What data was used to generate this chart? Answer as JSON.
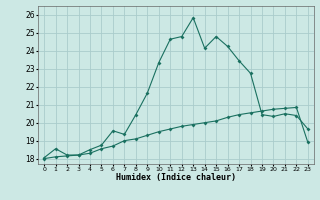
{
  "title": "",
  "xlabel": "Humidex (Indice chaleur)",
  "ylabel": "",
  "background_color": "#cce8e4",
  "grid_color": "#aacccc",
  "line_color": "#1a7060",
  "xlim": [
    -0.5,
    23.5
  ],
  "ylim": [
    17.7,
    26.5
  ],
  "yticks": [
    18,
    19,
    20,
    21,
    22,
    23,
    24,
    25,
    26
  ],
  "xticks": [
    0,
    1,
    2,
    3,
    4,
    5,
    6,
    7,
    8,
    9,
    10,
    11,
    12,
    13,
    14,
    15,
    16,
    17,
    18,
    19,
    20,
    21,
    22,
    23
  ],
  "line1_x": [
    0,
    1,
    2,
    3,
    4,
    5,
    6,
    7,
    8,
    9,
    10,
    11,
    12,
    13,
    14,
    15,
    16,
    17,
    18,
    19,
    20,
    21,
    22,
    23
  ],
  "line1_y": [
    18.0,
    18.1,
    18.15,
    18.2,
    18.3,
    18.55,
    18.7,
    19.0,
    19.1,
    19.3,
    19.5,
    19.65,
    19.8,
    19.9,
    20.0,
    20.1,
    20.3,
    20.45,
    20.55,
    20.65,
    20.75,
    20.8,
    20.85,
    18.9
  ],
  "line2_x": [
    0,
    1,
    2,
    3,
    4,
    5,
    6,
    7,
    8,
    9,
    10,
    11,
    12,
    13,
    14,
    15,
    16,
    17,
    18,
    19,
    20,
    21,
    22,
    23
  ],
  "line2_y": [
    18.05,
    18.55,
    18.2,
    18.2,
    18.5,
    18.75,
    19.55,
    19.35,
    20.45,
    21.65,
    23.35,
    24.65,
    24.8,
    25.85,
    24.15,
    24.8,
    24.25,
    23.45,
    22.75,
    20.45,
    20.35,
    20.5,
    20.4,
    19.65
  ]
}
